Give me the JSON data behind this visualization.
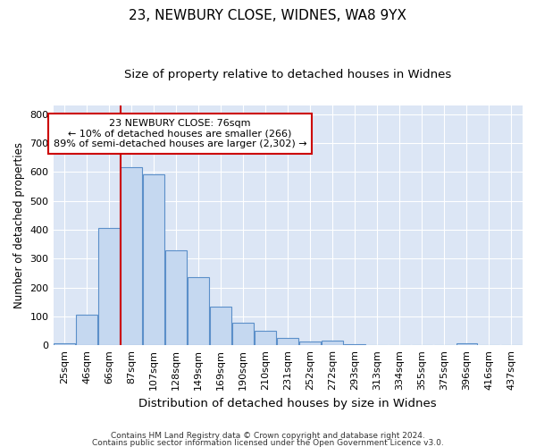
{
  "title1": "23, NEWBURY CLOSE, WIDNES, WA8 9YX",
  "title2": "Size of property relative to detached houses in Widnes",
  "xlabel": "Distribution of detached houses by size in Widnes",
  "ylabel": "Number of detached properties",
  "categories": [
    "25sqm",
    "46sqm",
    "66sqm",
    "87sqm",
    "107sqm",
    "128sqm",
    "149sqm",
    "169sqm",
    "190sqm",
    "210sqm",
    "231sqm",
    "252sqm",
    "272sqm",
    "293sqm",
    "313sqm",
    "334sqm",
    "355sqm",
    "375sqm",
    "396sqm",
    "416sqm",
    "437sqm"
  ],
  "values": [
    8,
    107,
    405,
    617,
    593,
    330,
    237,
    133,
    77,
    51,
    25,
    13,
    17,
    4,
    0,
    0,
    0,
    0,
    8,
    0,
    0
  ],
  "bar_color": "#c5d8f0",
  "bar_edge_color": "#5b8fc9",
  "vline_color": "#cc0000",
  "vline_x_index": 3,
  "annotation_text": "23 NEWBURY CLOSE: 76sqm\n← 10% of detached houses are smaller (266)\n89% of semi-detached houses are larger (2,302) →",
  "annotation_box_facecolor": "white",
  "annotation_box_edgecolor": "#cc0000",
  "ylim": [
    0,
    830
  ],
  "yticks": [
    0,
    100,
    200,
    300,
    400,
    500,
    600,
    700,
    800
  ],
  "background_color": "#ffffff",
  "plot_background_color": "#dce6f5",
  "grid_color": "#ffffff",
  "footer1": "Contains HM Land Registry data © Crown copyright and database right 2024.",
  "footer2": "Contains public sector information licensed under the Open Government Licence v3.0.",
  "title1_fontsize": 11,
  "title2_fontsize": 9.5,
  "ylabel_fontsize": 8.5,
  "xlabel_fontsize": 9.5,
  "tick_fontsize": 8,
  "footer_fontsize": 6.5,
  "annotation_fontsize": 8
}
